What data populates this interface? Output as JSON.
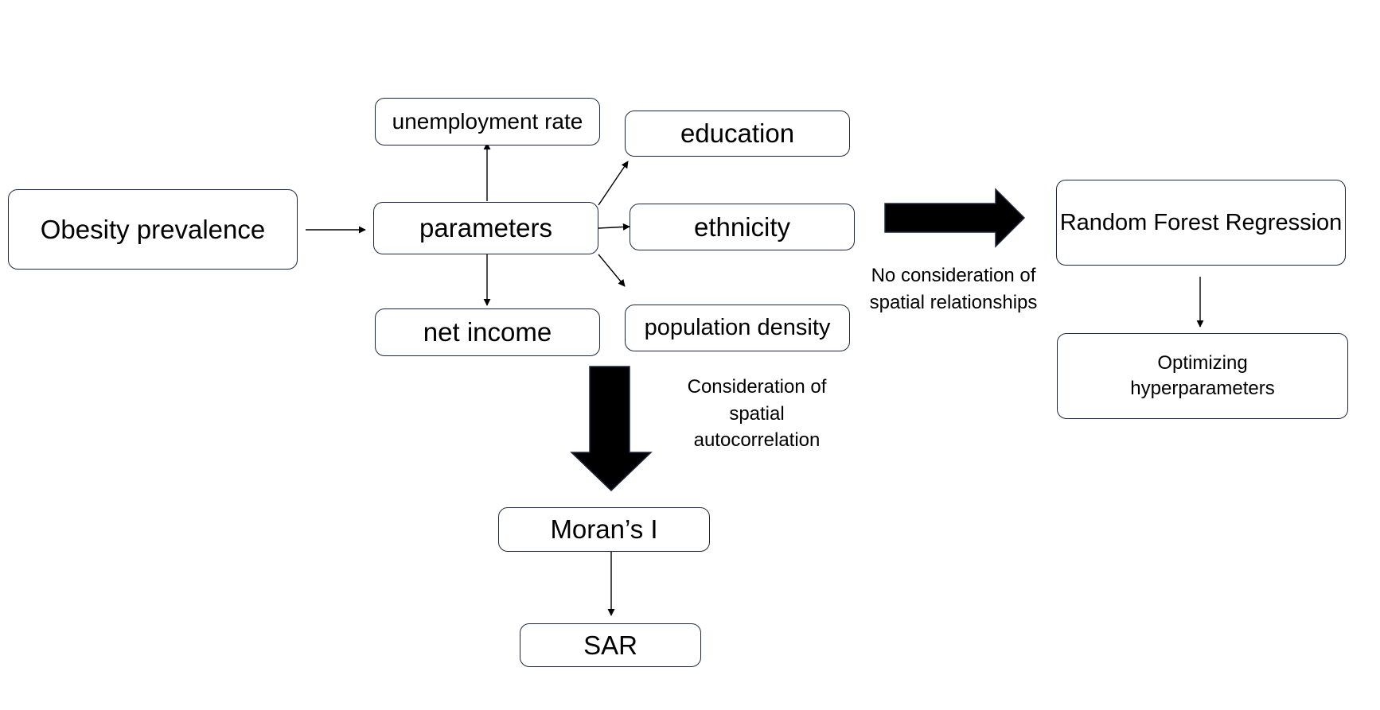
{
  "colors": {
    "box_border": "#1d2940",
    "arrow": "#000000",
    "text": "#000000"
  },
  "nodes": {
    "obesity": "Obesity prevalence",
    "parameters": "parameters",
    "unemployment": "unemployment rate",
    "education": "education",
    "ethnicity": "ethnicity",
    "net_income": "net income",
    "population_density": "population density",
    "random_forest": "Random Forest Regression",
    "optimizing": "Optimizing hyperparameters",
    "morans_i": "Moran’s I",
    "sar": "SAR"
  },
  "annotations": {
    "no_spatial": "No consideration of spatial relationships",
    "spatial_auto": "Consideration of spatial autocorrelation"
  }
}
